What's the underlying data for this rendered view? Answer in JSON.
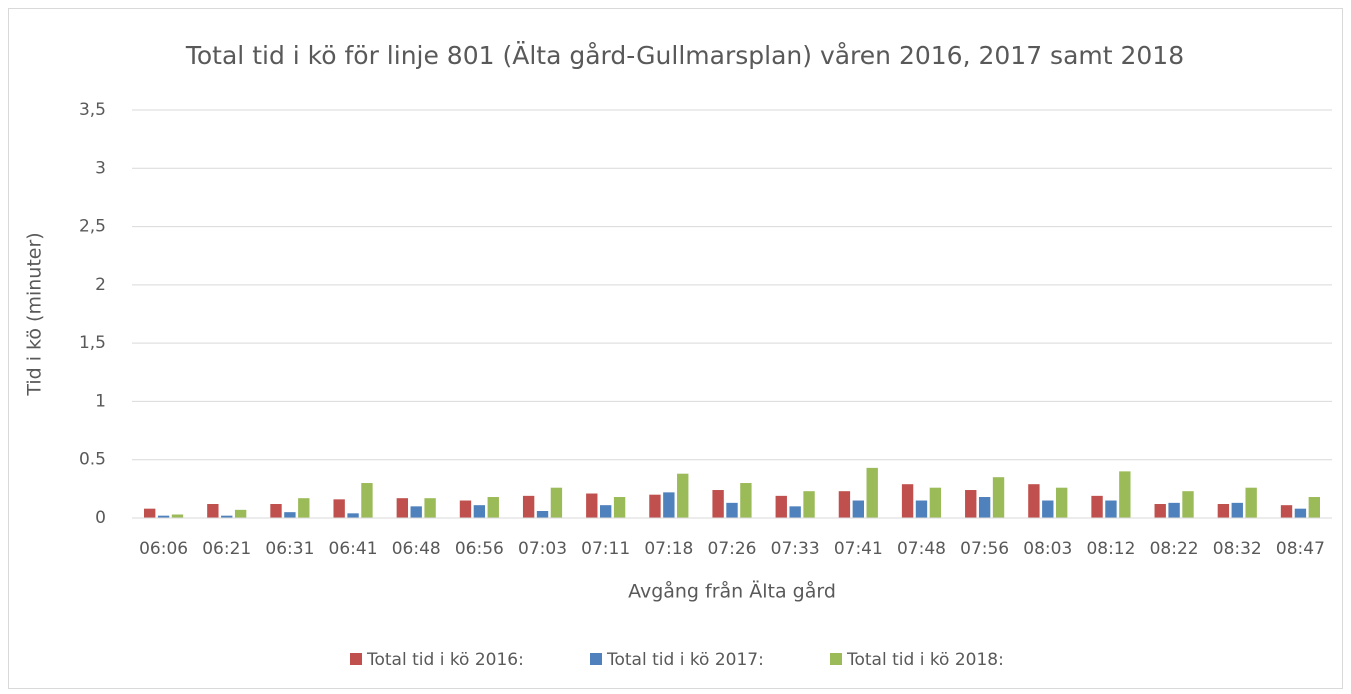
{
  "chart_data": {
    "type": "bar",
    "title": "Total tid i kö för linje 801 (Älta gård-Gullmarsplan) våren 2016, 2017 samt 2018",
    "x_label": "Avgång från Älta gård",
    "y_label": "Tid i kö (minuter)",
    "categories": [
      "06:06",
      "06:21",
      "06:31",
      "06:41",
      "06:48",
      "06:56",
      "07:03",
      "07:11",
      "07:18",
      "07:26",
      "07:33",
      "07:41",
      "07:48",
      "07:56",
      "08:03",
      "08:12",
      "08:22",
      "08:32",
      "08:47"
    ],
    "series": [
      {
        "name": "Total tid i kö 2016:",
        "color": "#c0504d",
        "values": [
          0.08,
          0.12,
          0.12,
          0.16,
          0.17,
          0.15,
          0.19,
          0.21,
          0.2,
          0.24,
          0.19,
          0.23,
          0.29,
          0.24,
          0.29,
          0.19,
          0.12,
          0.12,
          0.11
        ]
      },
      {
        "name": "Total tid i kö 2017:",
        "color": "#4f81bd",
        "values": [
          0.02,
          0.02,
          0.05,
          0.04,
          0.1,
          0.11,
          0.06,
          0.11,
          0.22,
          0.13,
          0.1,
          0.15,
          0.15,
          0.18,
          0.15,
          0.15,
          0.13,
          0.13,
          0.08
        ]
      },
      {
        "name": "Total tid i kö 2018:",
        "color": "#9bbb59",
        "values": [
          0.03,
          0.07,
          0.17,
          0.3,
          0.17,
          0.18,
          0.26,
          0.18,
          0.38,
          0.3,
          0.23,
          0.43,
          0.26,
          0.35,
          0.26,
          0.4,
          0.23,
          0.26,
          0.18
        ]
      }
    ],
    "ylim": [
      0,
      3.5
    ],
    "yticks": [
      0,
      0.5,
      1,
      {
        "value": 1.5,
        "label": "1,5"
      },
      2,
      {
        "value": 2.5,
        "label": "2,5"
      },
      3,
      {
        "value": 3.5,
        "label": "3,5"
      }
    ],
    "grid": true,
    "legend": "bottom"
  }
}
